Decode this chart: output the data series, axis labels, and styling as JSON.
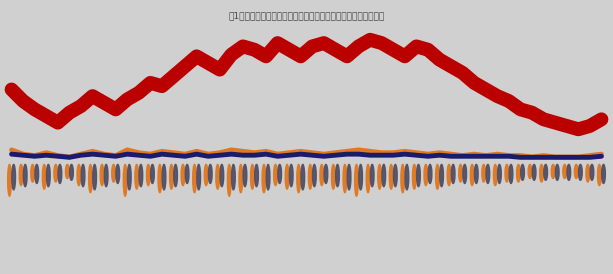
{
  "title": "図1　ある商品の過去一年間の仕入数量・出荷数量・在庫の推移",
  "background_color": "#d0d0d0",
  "n_points": 52,
  "inventory": [
    42,
    35,
    30,
    26,
    22,
    28,
    32,
    38,
    34,
    30,
    36,
    40,
    46,
    44,
    50,
    56,
    62,
    58,
    54,
    63,
    68,
    66,
    62,
    70,
    66,
    62,
    68,
    70,
    66,
    62,
    68,
    72,
    70,
    66,
    62,
    68,
    66,
    60,
    56,
    52,
    46,
    42,
    38,
    35,
    30,
    28,
    24,
    22,
    20,
    18,
    20,
    24
  ],
  "purchase": [
    18,
    12,
    10,
    14,
    10,
    8,
    12,
    16,
    12,
    10,
    18,
    14,
    12,
    16,
    14,
    12,
    16,
    12,
    14,
    18,
    16,
    14,
    16,
    12,
    14,
    16,
    14,
    12,
    14,
    16,
    18,
    16,
    14,
    14,
    16,
    14,
    12,
    14,
    12,
    10,
    12,
    10,
    12,
    10,
    10,
    8,
    10,
    8,
    8,
    8,
    10,
    12
  ],
  "shipment": [
    16,
    14,
    12,
    14,
    12,
    10,
    14,
    16,
    14,
    12,
    16,
    14,
    12,
    16,
    14,
    12,
    16,
    12,
    14,
    16,
    14,
    14,
    16,
    12,
    14,
    16,
    14,
    12,
    14,
    16,
    16,
    14,
    14,
    14,
    16,
    14,
    12,
    14,
    12,
    12,
    12,
    12,
    12,
    12,
    10,
    10,
    10,
    10,
    10,
    10,
    10,
    12
  ],
  "bar_purchase": [
    18,
    12,
    10,
    14,
    10,
    8,
    12,
    16,
    12,
    10,
    18,
    14,
    12,
    16,
    14,
    12,
    16,
    12,
    14,
    18,
    16,
    14,
    16,
    12,
    14,
    16,
    14,
    12,
    14,
    16,
    18,
    16,
    14,
    14,
    16,
    14,
    12,
    14,
    12,
    10,
    12,
    10,
    12,
    10,
    10,
    8,
    10,
    8,
    8,
    8,
    10,
    12
  ],
  "bar_shipment": [
    16,
    14,
    12,
    14,
    12,
    10,
    14,
    16,
    14,
    12,
    16,
    14,
    12,
    16,
    14,
    12,
    16,
    12,
    14,
    16,
    14,
    14,
    16,
    12,
    14,
    16,
    14,
    12,
    14,
    16,
    16,
    14,
    14,
    14,
    16,
    14,
    12,
    14,
    12,
    12,
    12,
    12,
    12,
    12,
    10,
    10,
    10,
    10,
    10,
    10,
    10,
    12
  ],
  "inventory_color": "#bb0000",
  "purchase_color": "#e07820",
  "shipment_color": "#1a1a6e",
  "bar_purchase_color": "#e07820",
  "bar_shipment_color": "#505068",
  "lw_inventory": 10,
  "lw_purchase": 3.5,
  "lw_shipment": 3.5
}
